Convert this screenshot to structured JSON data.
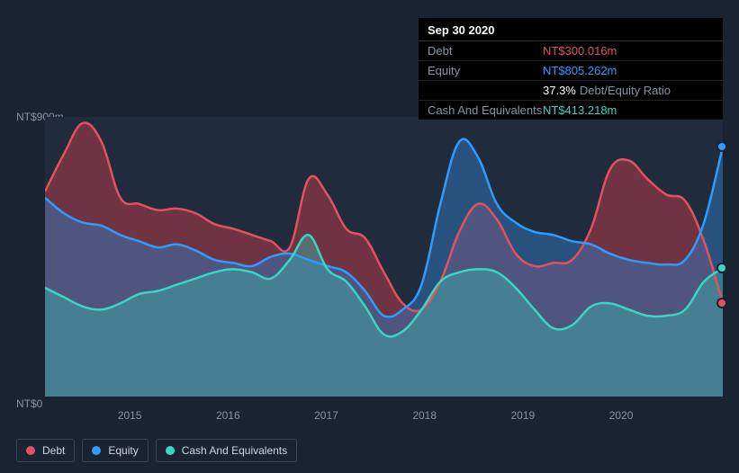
{
  "background_color": "#1a2332",
  "plot_background": "#202c3c",
  "tooltip": {
    "date": "Sep 30 2020",
    "rows": [
      {
        "label": "Debt",
        "value": "NT$300.016m",
        "class": "debt"
      },
      {
        "label": "Equity",
        "value": "NT$805.262m",
        "class": "equity"
      },
      {
        "label": "",
        "pct": "37.3%",
        "suffix": "Debt/Equity Ratio",
        "class": "ratio"
      },
      {
        "label": "Cash And Equivalents",
        "value": "NT$413.218m",
        "class": "cash"
      }
    ]
  },
  "chart": {
    "y_max_label": "NT$900m",
    "y_min_label": "NT$0",
    "y_max": 900,
    "y_min": 0,
    "x_ticks": [
      "2015",
      "2016",
      "2017",
      "2018",
      "2019",
      "2020"
    ],
    "x_tick_positions_pct": [
      12.5,
      27,
      41.5,
      56,
      70.5,
      85
    ],
    "series": {
      "debt": {
        "label": "Debt",
        "color": "#e05260",
        "fill_color": "rgba(179,58,69,0.55)",
        "values": [
          660,
          780,
          880,
          820,
          640,
          620,
          600,
          605,
          590,
          555,
          540,
          520,
          500,
          480,
          700,
          650,
          540,
          510,
          400,
          300,
          280,
          370,
          530,
          620,
          570,
          460,
          420,
          430,
          440,
          540,
          730,
          760,
          700,
          650,
          630,
          500,
          300
        ]
      },
      "equity": {
        "label": "Equity",
        "color": "#2f9bff",
        "fill_color": "rgba(47,120,190,0.50)",
        "values": [
          640,
          590,
          560,
          550,
          520,
          500,
          480,
          490,
          470,
          440,
          430,
          420,
          450,
          460,
          440,
          420,
          400,
          340,
          260,
          280,
          360,
          620,
          820,
          770,
          620,
          560,
          530,
          520,
          500,
          490,
          460,
          440,
          430,
          425,
          440,
          560,
          805
        ]
      },
      "cash": {
        "label": "Cash And Equivalents",
        "color": "#3ad6c5",
        "fill_color": "rgba(58,180,170,0.45)",
        "values": [
          350,
          320,
          290,
          280,
          300,
          330,
          340,
          360,
          380,
          400,
          410,
          400,
          380,
          440,
          520,
          410,
          370,
          290,
          200,
          210,
          280,
          370,
          400,
          410,
          400,
          350,
          280,
          220,
          230,
          290,
          300,
          280,
          260,
          260,
          280,
          370,
          413
        ]
      }
    },
    "end_markers": [
      {
        "series": "equity",
        "y": 805
      },
      {
        "series": "cash",
        "y": 413
      },
      {
        "series": "debt",
        "y": 300
      }
    ]
  },
  "legend": [
    {
      "label": "Debt",
      "color": "#e05260"
    },
    {
      "label": "Equity",
      "color": "#2f9bff"
    },
    {
      "label": "Cash And Equivalents",
      "color": "#3ad6c5"
    }
  ]
}
